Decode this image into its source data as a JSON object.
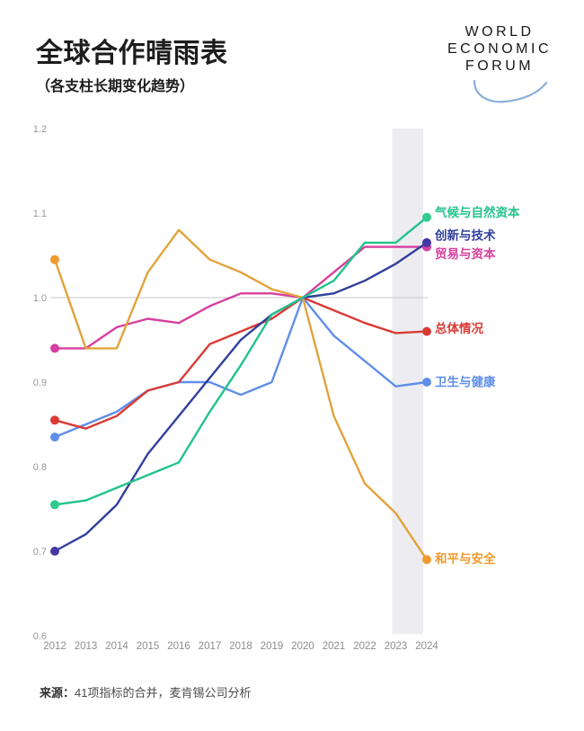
{
  "header": {
    "title": "全球合作晴雨表",
    "subtitle": "（各支柱长期变化趋势）"
  },
  "logo": {
    "lines": [
      "WORLD",
      "ECONOMIC",
      "FORUM"
    ]
  },
  "chart_data": {
    "type": "line",
    "x": [
      2012,
      2013,
      2014,
      2015,
      2016,
      2017,
      2018,
      2019,
      2020,
      2021,
      2022,
      2023,
      2024
    ],
    "ylim": [
      0.6,
      1.2
    ],
    "yticks": [
      1.2,
      1.1,
      1.0,
      0.9,
      0.8,
      0.7,
      0.6
    ],
    "gridline_at": 1.0,
    "grid": "horizontal line at 1.0 only",
    "legend_position": "right of last data point, colored labels",
    "highlight_band": {
      "x_start": 2023,
      "x_end": 2024,
      "color": "#ededf1"
    },
    "series": [
      {
        "id": "health",
        "label": "卫生与健康",
        "color": "#5f8ee8",
        "label_dy": 0,
        "values": [
          0.835,
          0.85,
          0.865,
          0.89,
          0.9,
          0.9,
          0.885,
          0.9,
          1.0,
          0.955,
          0.925,
          0.895,
          0.9
        ]
      },
      {
        "id": "overall",
        "label": "总体情况",
        "color": "#d93a36",
        "label_dy": -3,
        "values": [
          0.855,
          0.845,
          0.86,
          0.89,
          0.9,
          0.945,
          0.96,
          0.975,
          1.0,
          0.985,
          0.97,
          0.958,
          0.96
        ]
      },
      {
        "id": "trade",
        "label": "贸易与资本",
        "color": "#d6409f",
        "label_dy": 8,
        "values": [
          0.94,
          0.94,
          0.965,
          0.975,
          0.97,
          0.99,
          1.005,
          1.005,
          1.0,
          1.03,
          1.06,
          1.06,
          1.06
        ]
      },
      {
        "id": "peace",
        "label": "和平与安全",
        "color": "#e2a33b",
        "dot_color": "#f0992e",
        "label_color": "#f09a2f",
        "label_dy": -1,
        "values": [
          1.045,
          0.94,
          0.94,
          1.03,
          1.08,
          1.045,
          1.03,
          1.01,
          1.0,
          0.86,
          0.78,
          0.745,
          0.69
        ]
      },
      {
        "id": "innovation",
        "label": "创新与技术",
        "color": "#31409b",
        "dot_color": "#4538a6",
        "label_dy": -8,
        "values": [
          0.7,
          0.72,
          0.755,
          0.815,
          0.86,
          0.905,
          0.95,
          0.98,
          1.0,
          1.005,
          1.02,
          1.04,
          1.065
        ]
      },
      {
        "id": "climate",
        "label": "气候与自然资本",
        "color": "#22c38b",
        "dot_color": "#2fcb8f",
        "label_dy": -5,
        "values": [
          0.755,
          0.76,
          0.775,
          0.79,
          0.805,
          0.865,
          0.92,
          0.98,
          1.0,
          1.02,
          1.065,
          1.065,
          1.095
        ]
      }
    ]
  },
  "source": {
    "prefix": "来源：",
    "text": "41项指标的合并，麦肯锡公司分析"
  }
}
